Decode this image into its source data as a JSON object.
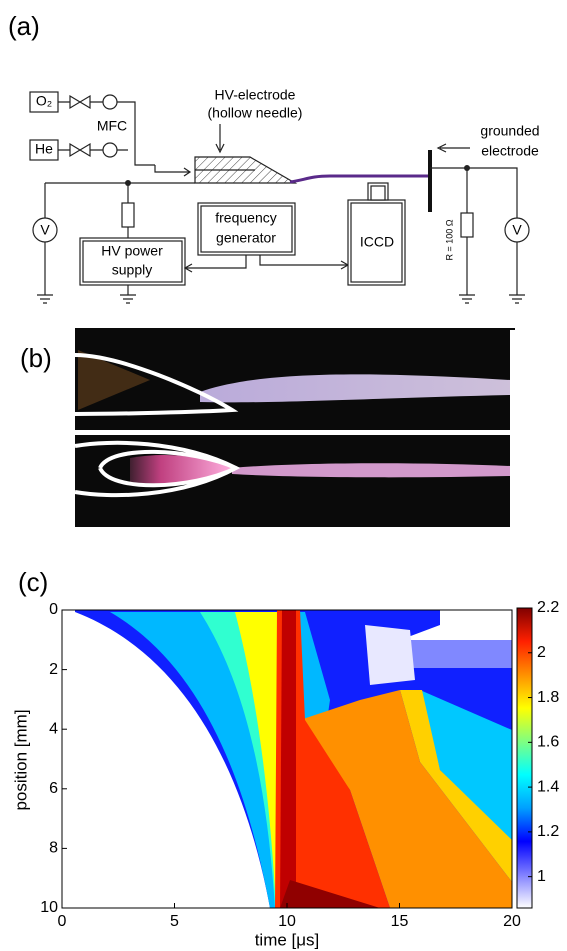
{
  "panel_a": {
    "label": "(a)",
    "gas1": "O₂",
    "gas2": "He",
    "mfc": "MFC",
    "electrode_line1": "HV-electrode",
    "electrode_line2": "(hollow needle)",
    "ground_line1": "grounded",
    "ground_line2": "electrode",
    "voltmeter_left": "V",
    "voltmeter_right": "V",
    "power_line1": "HV power",
    "power_line2": "supply",
    "generator_line1": "frequency",
    "generator_line2": "generator",
    "camera": "ICCD",
    "resistor": "R = 100 Ω"
  },
  "panel_b": {
    "label": "(b)"
  },
  "chart_data": {
    "type": "heatmap",
    "label": "(c)",
    "xlabel": "time [μs]",
    "ylabel": "position [mm]",
    "xlim": [
      0,
      20
    ],
    "xticks": [
      0,
      5,
      10,
      15,
      20
    ],
    "ylim": [
      10,
      0
    ],
    "yticks": [
      0,
      2,
      4,
      6,
      8,
      10
    ],
    "colorbar": {
      "lim": [
        0.86,
        2.2
      ],
      "ticks": [
        1,
        1.2,
        1.4,
        1.6,
        1.8,
        2,
        2.2
      ],
      "colors": [
        "#ffffff",
        "#8080ff",
        "#0000ff",
        "#00a0ff",
        "#00ffff",
        "#80ff80",
        "#ffff00",
        "#ff9000",
        "#ff2000",
        "#800000"
      ]
    }
  }
}
